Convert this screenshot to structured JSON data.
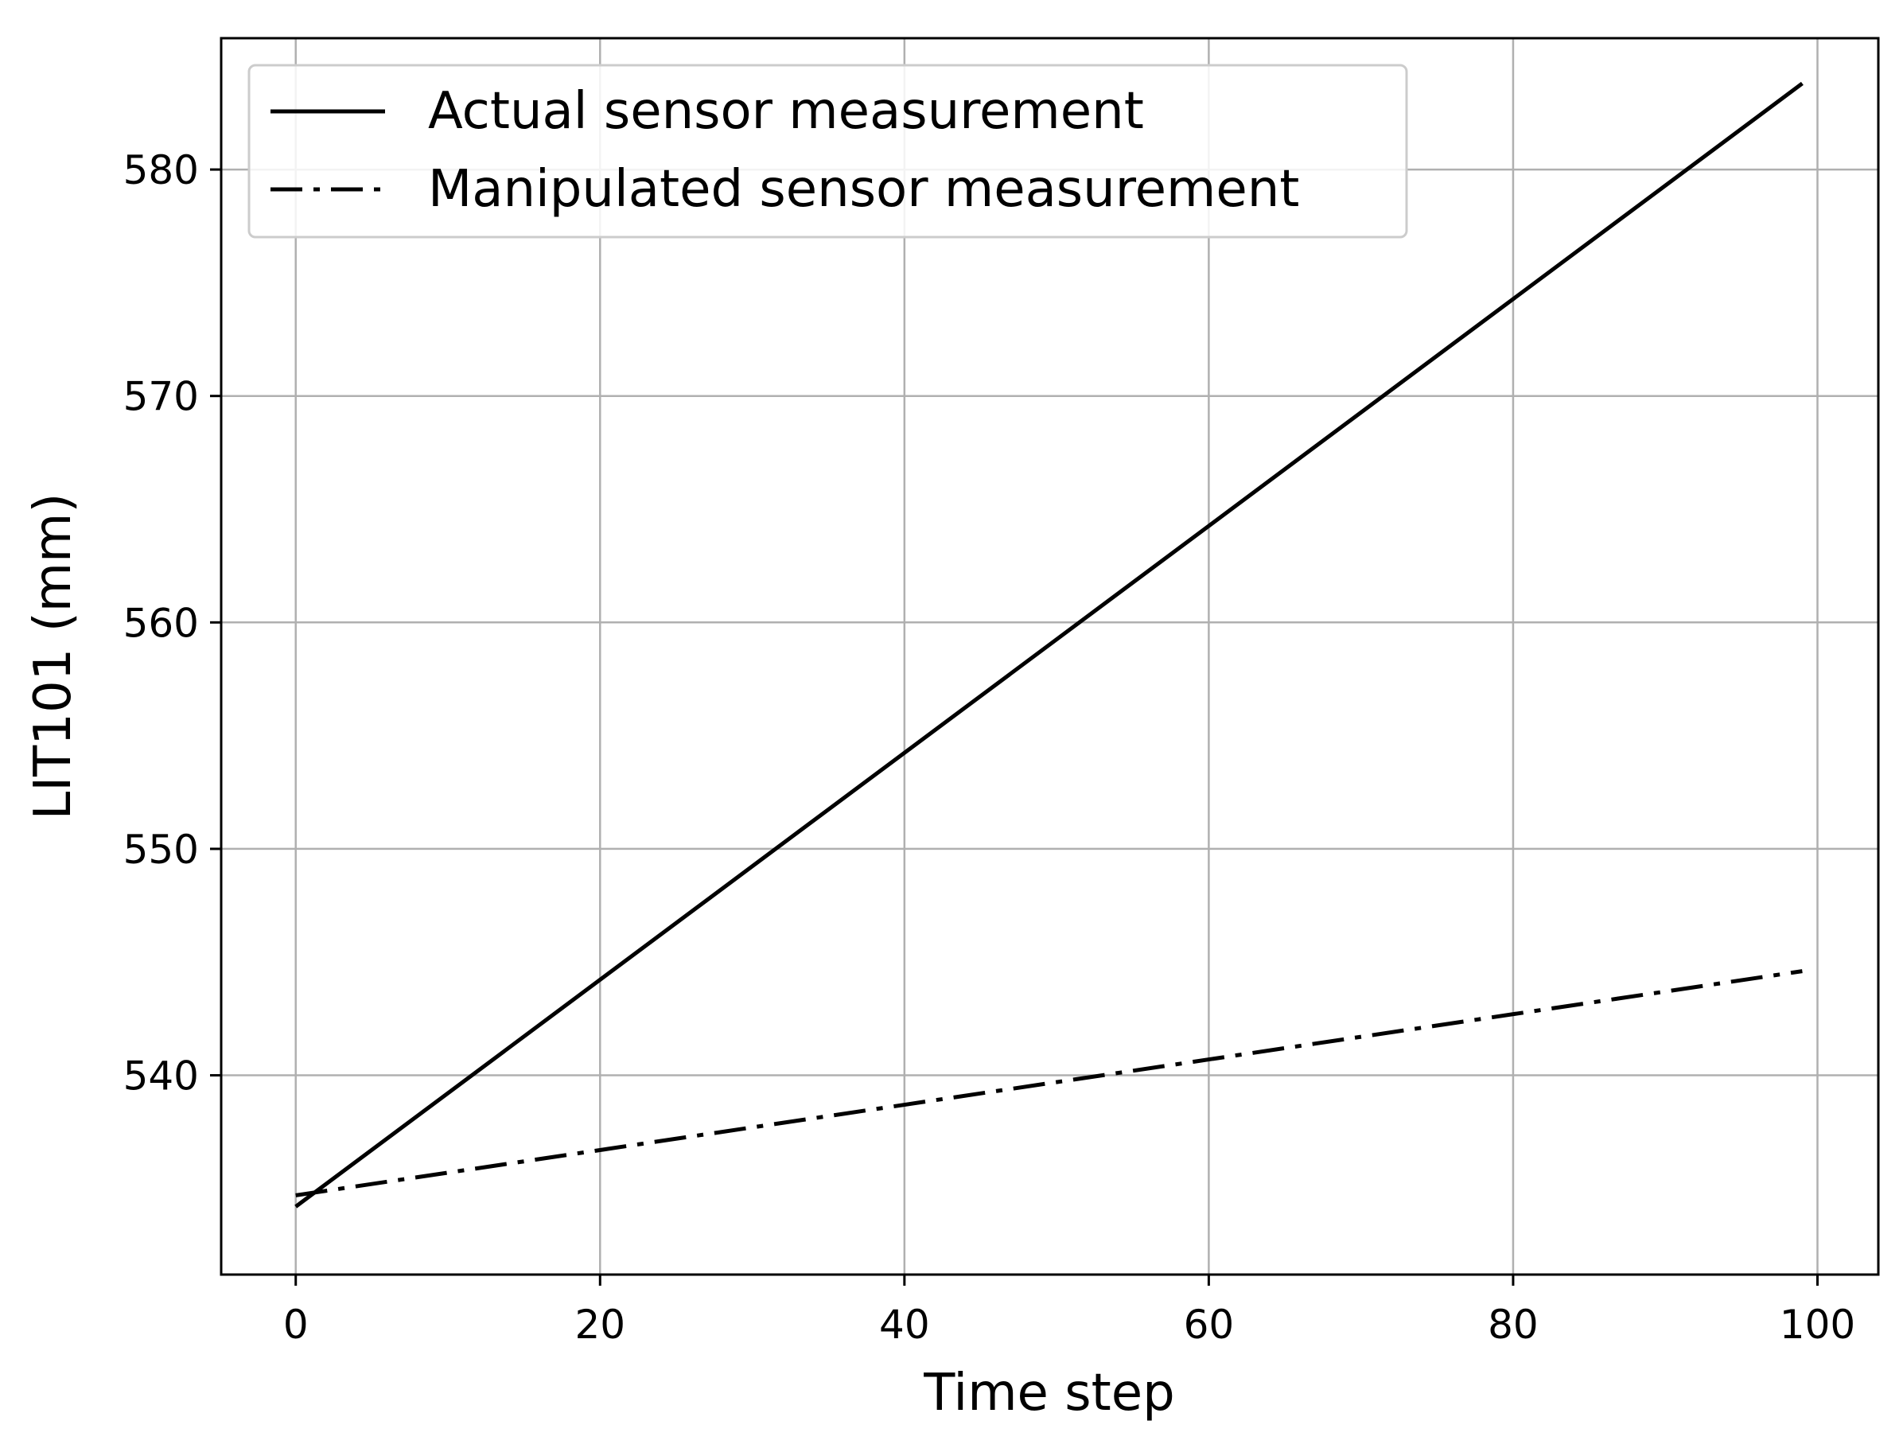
{
  "chart_data": {
    "type": "line",
    "title": "",
    "xlabel": "Time step",
    "ylabel": "LIT101 (mm)",
    "xlim": [
      -4.9,
      104.0
    ],
    "ylim": [
      531.2,
      585.8
    ],
    "xticks": [
      0,
      20,
      40,
      60,
      80,
      100
    ],
    "yticks": [
      540,
      550,
      560,
      570,
      580
    ],
    "xtick_labels": [
      "0",
      "20",
      "40",
      "60",
      "80",
      "100"
    ],
    "ytick_labels": [
      "540",
      "550",
      "560",
      "570",
      "580"
    ],
    "grid": true,
    "legend_position": "upper left",
    "series": [
      {
        "name": "Actual sensor measurement",
        "style": "solid",
        "color": "#000000",
        "x": [
          0,
          99
        ],
        "y": [
          534.2,
          583.8
        ]
      },
      {
        "name": "Manipulated sensor measurement",
        "style": "dashdot",
        "color": "#000000",
        "x": [
          0,
          99
        ],
        "y": [
          534.7,
          544.6
        ]
      }
    ]
  }
}
